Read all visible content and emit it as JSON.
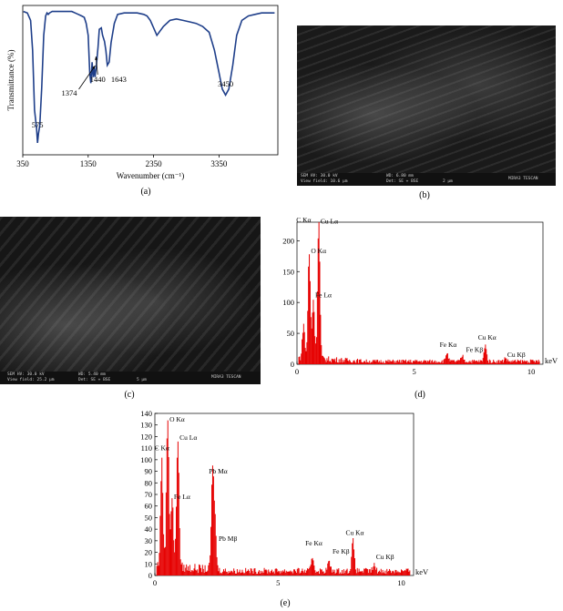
{
  "captions": {
    "a": "(a)",
    "b": "(b)",
    "c": "(c)",
    "d": "(d)",
    "e": "(e)"
  },
  "ftir": {
    "ylabel": "Transmittance (%)",
    "xlabel": "Wavenumber (cm⁻¹)",
    "xticks": [
      "350",
      "1350",
      "2350",
      "3350"
    ],
    "peaks": [
      "575",
      "1374",
      "1440",
      "1643",
      "3450"
    ]
  },
  "sem_b": {
    "bar_left": "SEM HV: 30.0 kV",
    "bar_left2": "View field: 10.6 µm",
    "bar_mid": "WD: 6.80 mm",
    "bar_mid2": "Det: SE + BSE",
    "bar_scale": "2 µm",
    "bar_right": "MIRA3 TESCAN"
  },
  "sem_c": {
    "bar_left": "SEM HV: 30.0 kV",
    "bar_left2": "View field: 25.2 µm",
    "bar_mid": "WD: 5.40 mm",
    "bar_mid2": "Det: SE + BSE",
    "bar_scale": "5 µm",
    "bar_right": "MIRA3 TESCAN"
  },
  "chart_data": [
    {
      "panel": "(a)",
      "type": "line",
      "title": "",
      "xlabel": "Wavenumber (cm⁻¹)",
      "ylabel": "Transmittance (%)",
      "xlim": [
        350,
        4250
      ],
      "x_direction": "increasing",
      "grid": false,
      "annotations": [
        {
          "text": "575",
          "x": 575
        },
        {
          "text": "1374",
          "x": 1374
        },
        {
          "text": "1440",
          "x": 1440
        },
        {
          "text": "1643",
          "x": 1643
        },
        {
          "text": "3450",
          "x": 3450
        }
      ],
      "series": [
        {
          "color": "#1f3f8a",
          "x": [
            360,
            420,
            470,
            500,
            530,
            560,
            575,
            590,
            610,
            640,
            670,
            700,
            720,
            740,
            760,
            800,
            900,
            1000,
            1100,
            1150,
            1200,
            1250,
            1290,
            1320,
            1350,
            1374,
            1390,
            1410,
            1425,
            1440,
            1455,
            1475,
            1500,
            1520,
            1550,
            1570,
            1600,
            1620,
            1643,
            1670,
            1700,
            1750,
            1800,
            1900,
            2000,
            2100,
            2200,
            2250,
            2300,
            2350,
            2400,
            2500,
            2600,
            2700,
            2800,
            2900,
            3000,
            3100,
            3200,
            3280,
            3350,
            3400,
            3450,
            3500,
            3560,
            3620,
            3700,
            3800,
            3900,
            4000,
            4100,
            4200
          ],
          "y": [
            96,
            95,
            90,
            70,
            30,
            18,
            8,
            14,
            20,
            45,
            80,
            93,
            95,
            94,
            95,
            96,
            96,
            96,
            96,
            95,
            94,
            93,
            92,
            88,
            80,
            55,
            48,
            62,
            52,
            58,
            52,
            60,
            72,
            84,
            85,
            80,
            76,
            70,
            60,
            62,
            75,
            88,
            94,
            95,
            95,
            95,
            94,
            93,
            90,
            85,
            80,
            86,
            90,
            91,
            90,
            89,
            88,
            86,
            82,
            70,
            55,
            44,
            40,
            44,
            60,
            80,
            90,
            93,
            94,
            95,
            95,
            95
          ]
        }
      ]
    },
    {
      "panel": "(d)",
      "type": "bar",
      "title": "",
      "xlabel": "keV",
      "ylabel": "",
      "xlim": [
        0,
        10.5
      ],
      "ylim": [
        0,
        230
      ],
      "xticks": [
        "0",
        "5",
        "10"
      ],
      "yticks": [
        "0",
        "50",
        "100",
        "150",
        "200"
      ],
      "grid": false,
      "color": "#e60000",
      "annotations": [
        {
          "text": "C Kα",
          "x": 0.28,
          "y": 230
        },
        {
          "text": "Cu Lα",
          "x": 0.93,
          "y": 228
        },
        {
          "text": "O Kα",
          "x": 0.52,
          "y": 180
        },
        {
          "text": "Fe Lα",
          "x": 0.7,
          "y": 108
        },
        {
          "text": "Fe Kα",
          "x": 6.4,
          "y": 28
        },
        {
          "text": "Fe Kβ",
          "x": 7.06,
          "y": 20
        },
        {
          "text": "Cu Kα",
          "x": 8.04,
          "y": 40
        },
        {
          "text": "Cu Kβ",
          "x": 8.9,
          "y": 12
        }
      ],
      "peaks": [
        {
          "x": 0.28,
          "y": 55
        },
        {
          "x": 0.52,
          "y": 170
        },
        {
          "x": 0.7,
          "y": 95
        },
        {
          "x": 0.93,
          "y": 228
        },
        {
          "x": 6.4,
          "y": 14
        },
        {
          "x": 7.06,
          "y": 9
        },
        {
          "x": 8.04,
          "y": 28
        },
        {
          "x": 8.9,
          "y": 6
        }
      ],
      "baseline": 6
    },
    {
      "panel": "(e)",
      "type": "bar",
      "title": "",
      "xlabel": "keV",
      "ylabel": "",
      "xlim": [
        0,
        10.5
      ],
      "ylim": [
        0,
        140
      ],
      "xticks": [
        "0",
        "5",
        "10"
      ],
      "yticks": [
        "0",
        "10",
        "20",
        "30",
        "40",
        "50",
        "60",
        "70",
        "80",
        "90",
        "100",
        "110",
        "120",
        "130",
        "140"
      ],
      "grid": false,
      "color": "#e60000",
      "annotations": [
        {
          "text": "O Kα",
          "x": 0.52,
          "y": 133
        },
        {
          "text": "Cu Lα",
          "x": 0.93,
          "y": 117
        },
        {
          "text": "C Kα",
          "x": 0.28,
          "y": 108
        },
        {
          "text": "Fe Lα",
          "x": 0.7,
          "y": 66
        },
        {
          "text": "Pb Mα",
          "x": 2.34,
          "y": 88
        },
        {
          "text": "Pb Mβ",
          "x": 2.44,
          "y": 30
        },
        {
          "text": "Fe Kα",
          "x": 6.4,
          "y": 26
        },
        {
          "text": "Fe Kβ",
          "x": 7.06,
          "y": 19
        },
        {
          "text": "Cu Kα",
          "x": 8.04,
          "y": 35
        },
        {
          "text": "Cu Kβ",
          "x": 8.9,
          "y": 14
        }
      ],
      "peaks": [
        {
          "x": 0.28,
          "y": 90
        },
        {
          "x": 0.52,
          "y": 130
        },
        {
          "x": 0.7,
          "y": 60
        },
        {
          "x": 0.93,
          "y": 112
        },
        {
          "x": 2.34,
          "y": 82
        },
        {
          "x": 2.44,
          "y": 40
        },
        {
          "x": 6.4,
          "y": 12
        },
        {
          "x": 7.06,
          "y": 8
        },
        {
          "x": 8.04,
          "y": 26
        },
        {
          "x": 8.9,
          "y": 5
        }
      ],
      "baseline": 5
    }
  ]
}
